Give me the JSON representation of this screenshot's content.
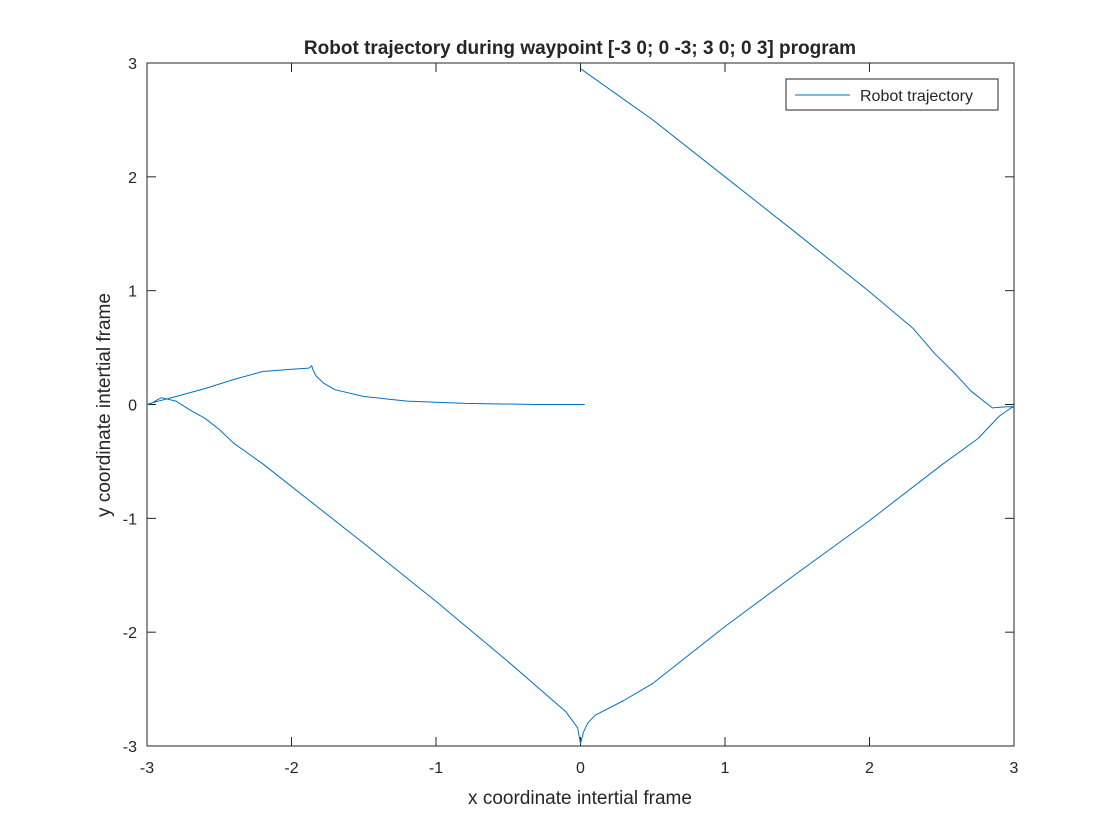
{
  "chart_data": {
    "type": "line",
    "title": "Robot trajectory during waypoint [-3 0; 0 -3; 3 0; 0 3] program",
    "xlabel": "x coordinate intertial frame",
    "ylabel": "y coordinate intertial frame",
    "xlim": [
      -3,
      3
    ],
    "ylim": [
      -3,
      3
    ],
    "xticks": [
      -3,
      -2,
      -1,
      0,
      1,
      2,
      3
    ],
    "yticks": [
      -3,
      -2,
      -1,
      0,
      1,
      2,
      3
    ],
    "grid": false,
    "legend_position": "top-right",
    "series": [
      {
        "name": "Robot trajectory",
        "color": "#0072bd",
        "x": [
          0.03,
          -0.3,
          -0.8,
          -1.2,
          -1.5,
          -1.7,
          -1.78,
          -1.83,
          -1.85,
          -1.86,
          -1.88,
          -2.0,
          -2.2,
          -2.4,
          -2.6,
          -2.8,
          -2.95,
          -3.0,
          -2.97,
          -2.93,
          -2.9,
          -2.8,
          -2.7,
          -2.6,
          -2.5,
          -2.4,
          -2.2,
          -1.5,
          -1.0,
          -0.5,
          -0.1,
          -0.02,
          0.0,
          0.02,
          0.05,
          0.1,
          0.3,
          0.5,
          1.0,
          1.5,
          2.0,
          2.5,
          2.75,
          2.9,
          2.98,
          3.0,
          2.95,
          2.85,
          2.7,
          2.6,
          2.45,
          2.3,
          2.0,
          1.5,
          1.0,
          0.5,
          0.0
        ],
        "y": [
          0.0,
          0.0,
          0.01,
          0.03,
          0.07,
          0.13,
          0.19,
          0.25,
          0.3,
          0.34,
          0.32,
          0.31,
          0.29,
          0.22,
          0.14,
          0.07,
          0.02,
          0.0,
          0.01,
          0.04,
          0.06,
          0.03,
          -0.05,
          -0.12,
          -0.22,
          -0.34,
          -0.52,
          -1.22,
          -1.73,
          -2.26,
          -2.7,
          -2.84,
          -2.98,
          -2.88,
          -2.8,
          -2.73,
          -2.6,
          -2.45,
          -1.95,
          -1.48,
          -1.02,
          -0.53,
          -0.3,
          -0.1,
          -0.03,
          -0.02,
          -0.02,
          -0.03,
          0.12,
          0.26,
          0.45,
          0.67,
          0.99,
          1.5,
          2.0,
          2.5,
          2.95
        ]
      }
    ]
  }
}
